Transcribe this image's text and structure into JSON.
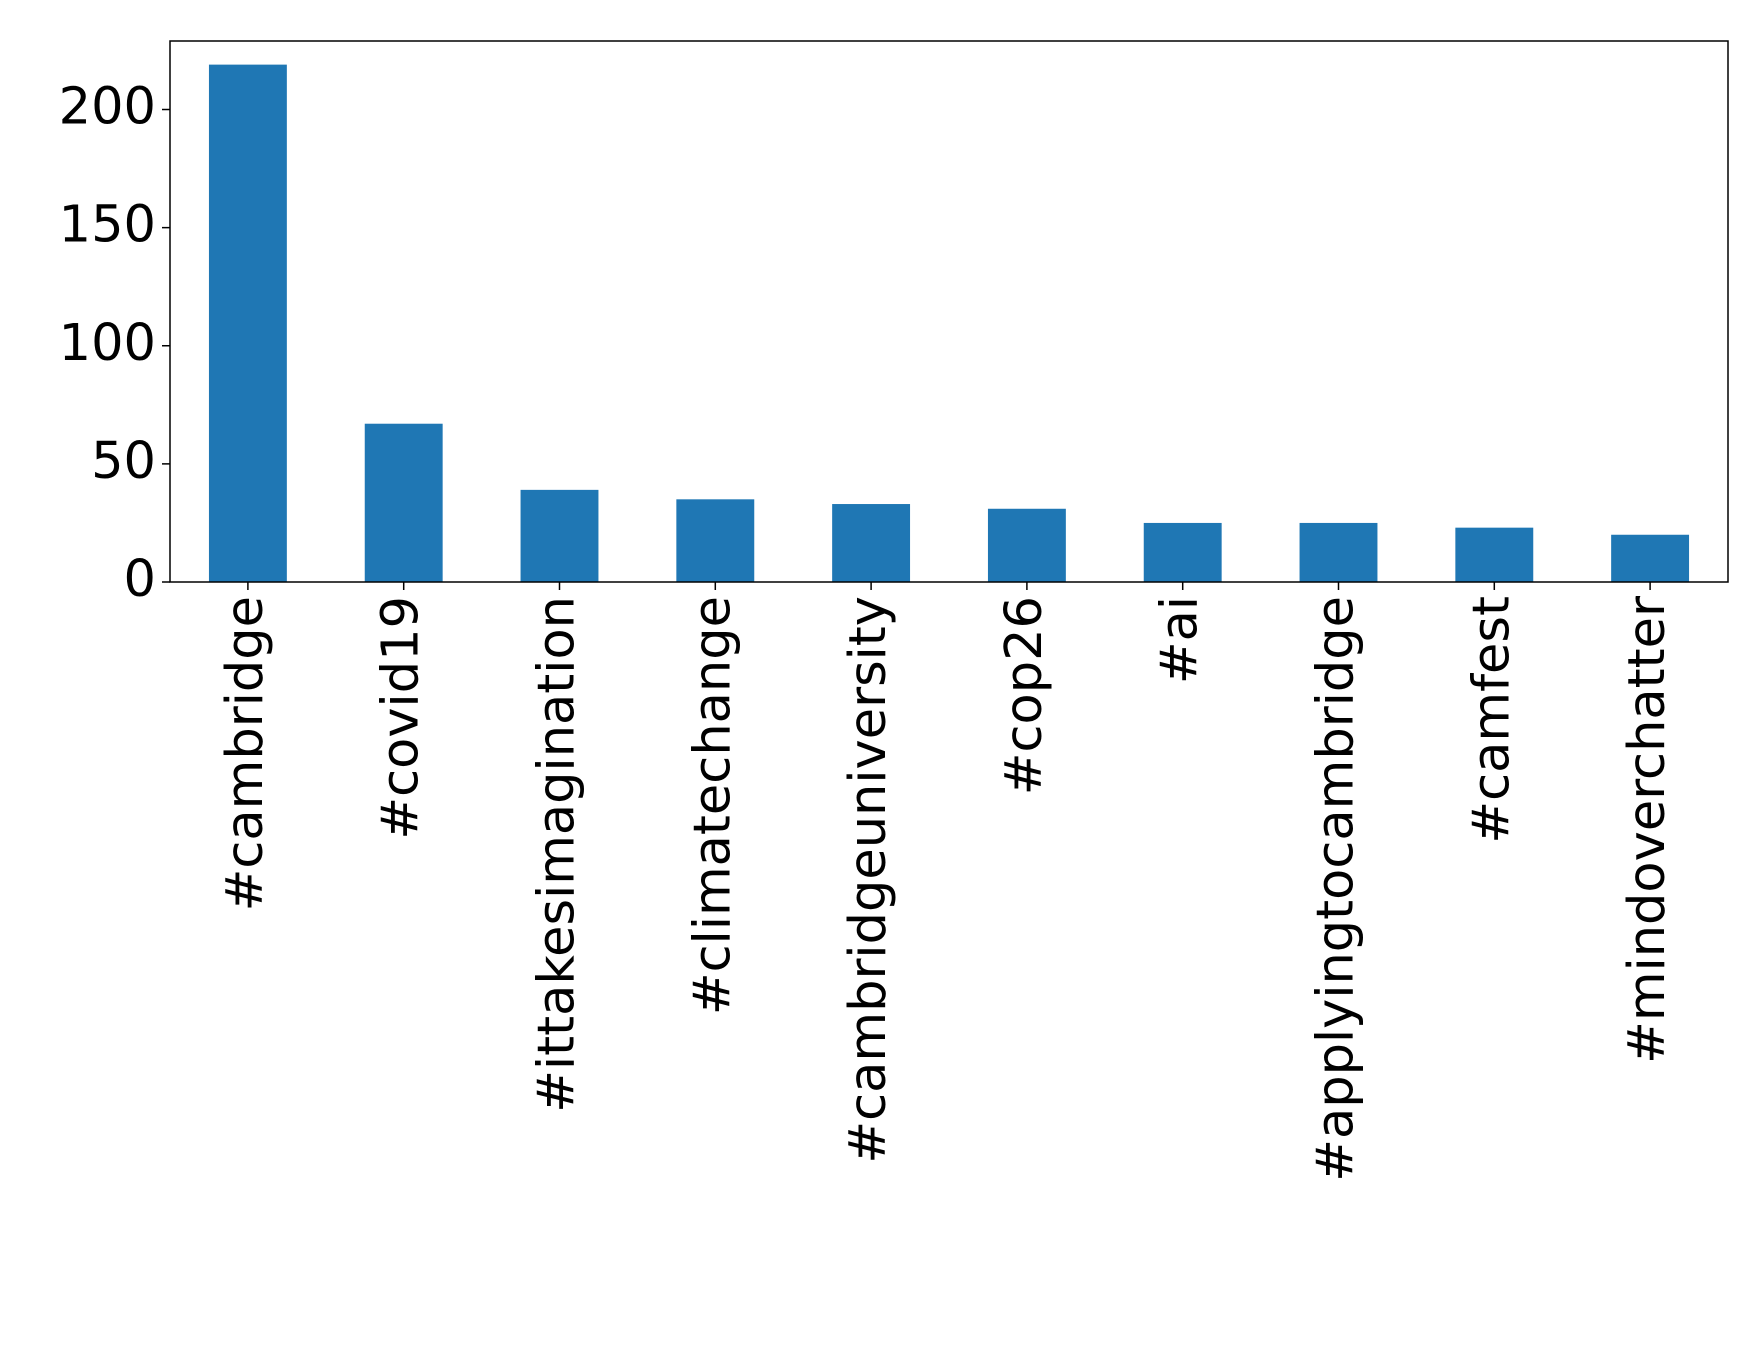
{
  "chart_data": {
    "type": "bar",
    "categories": [
      "#cambridge",
      "#covid19",
      "#ittakesimagination",
      "#climatechange",
      "#cambridgeuniversity",
      "#cop26",
      "#ai",
      "#applyingtocambridge",
      "#camfest",
      "#mindoverchatter"
    ],
    "values": [
      219,
      67,
      39,
      35,
      33,
      31,
      25,
      25,
      23,
      20
    ],
    "color": "#1f77b4",
    "ylim": [
      0,
      229
    ],
    "yticks": [
      0,
      50,
      100,
      150,
      200
    ],
    "grid": false
  }
}
